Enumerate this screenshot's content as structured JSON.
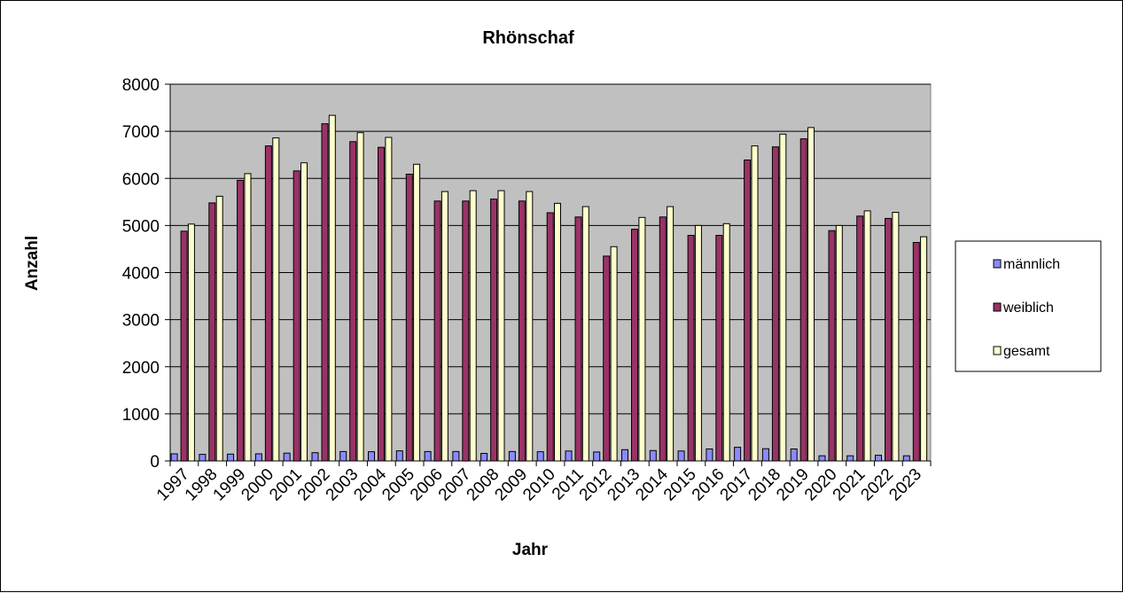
{
  "chart_data": {
    "type": "bar",
    "title": "Rhönschaf",
    "xlabel": "Jahr",
    "ylabel": "Anzahl",
    "ylim": [
      0,
      8000
    ],
    "yticks": [
      0,
      1000,
      2000,
      3000,
      4000,
      5000,
      6000,
      7000,
      8000
    ],
    "grid": true,
    "legend_position": "right",
    "categories": [
      "1997",
      "1998",
      "1999",
      "2000",
      "2001",
      "2002",
      "2003",
      "2004",
      "2005",
      "2006",
      "2007",
      "2008",
      "2009",
      "2010",
      "2011",
      "2012",
      "2013",
      "2014",
      "2015",
      "2016",
      "2017",
      "2018",
      "2019",
      "2020",
      "2021",
      "2022",
      "2023"
    ],
    "series": [
      {
        "name": "männlich",
        "color": "#8a8aff",
        "values": [
          150,
          140,
          145,
          150,
          165,
          175,
          200,
          195,
          215,
          200,
          200,
          160,
          200,
          195,
          210,
          190,
          240,
          220,
          210,
          255,
          290,
          260,
          255,
          110,
          110,
          120,
          110
        ]
      },
      {
        "name": "weiblich",
        "color": "#993366",
        "values": [
          4880,
          5480,
          5960,
          6690,
          6160,
          7160,
          6780,
          6660,
          6090,
          5520,
          5520,
          5560,
          5520,
          5270,
          5180,
          4350,
          4920,
          5180,
          4790,
          4790,
          6390,
          6670,
          6840,
          4890,
          5200,
          5150,
          4640
        ]
      },
      {
        "name": "gesamt",
        "color": "#ffffcc",
        "values": [
          5030,
          5620,
          6100,
          6860,
          6330,
          7340,
          6970,
          6870,
          6300,
          5720,
          5740,
          5740,
          5720,
          5470,
          5400,
          4550,
          5170,
          5400,
          5000,
          5040,
          6690,
          6940,
          7080,
          5000,
          5310,
          5280,
          4760
        ]
      }
    ]
  }
}
